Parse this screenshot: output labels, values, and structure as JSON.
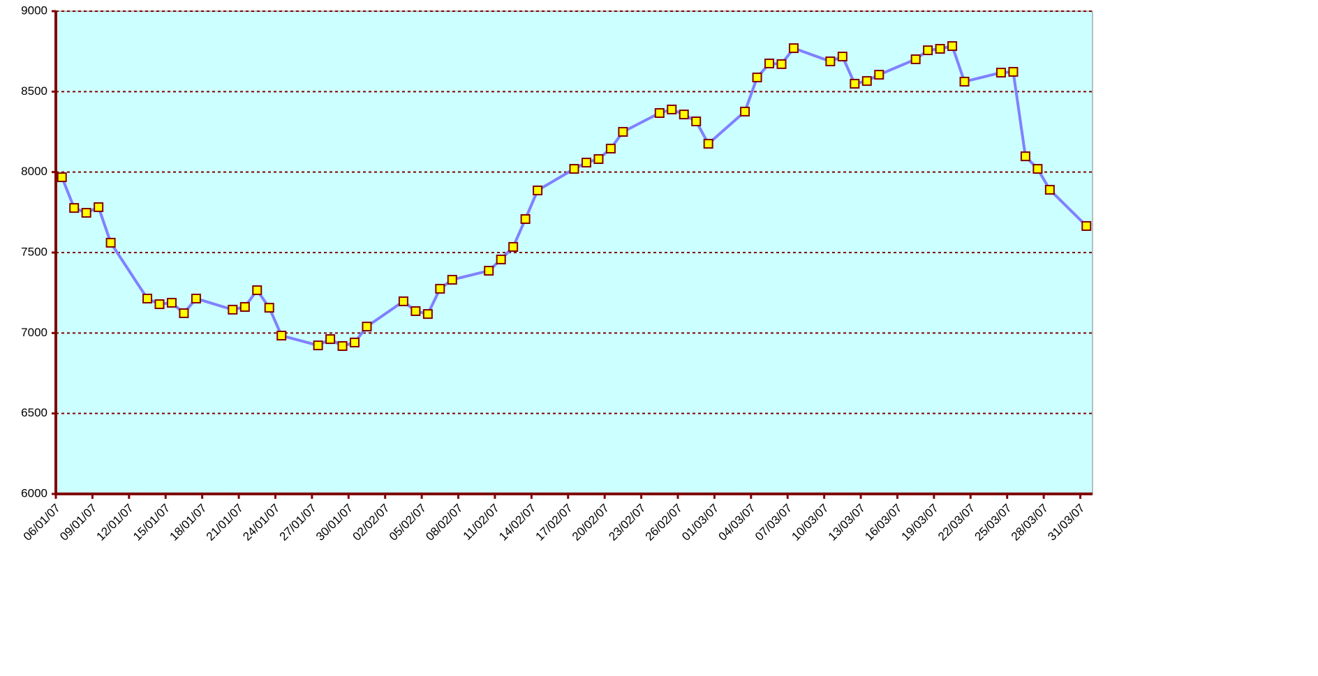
{
  "chart_data": {
    "type": "line",
    "x": [
      "06/01/07",
      "07/01/07",
      "08/01/07",
      "09/01/07",
      "10/01/07",
      "13/01/07",
      "14/01/07",
      "15/01/07",
      "16/01/07",
      "17/01/07",
      "20/01/07",
      "21/01/07",
      "22/01/07",
      "23/01/07",
      "24/01/07",
      "27/01/07",
      "28/01/07",
      "29/01/07",
      "30/01/07",
      "31/01/07",
      "03/02/07",
      "04/02/07",
      "05/02/07",
      "06/02/07",
      "07/02/07",
      "10/02/07",
      "11/02/07",
      "12/02/07",
      "13/02/07",
      "14/02/07",
      "17/02/07",
      "18/02/07",
      "19/02/07",
      "20/02/07",
      "21/02/07",
      "24/02/07",
      "25/02/07",
      "26/02/07",
      "27/02/07",
      "28/02/07",
      "03/03/07",
      "04/03/07",
      "05/03/07",
      "06/03/07",
      "07/03/07",
      "10/03/07",
      "11/03/07",
      "12/03/07",
      "13/03/07",
      "14/03/07",
      "17/03/07",
      "18/03/07",
      "19/03/07",
      "20/03/07",
      "21/03/07",
      "24/03/07",
      "25/03/07",
      "26/03/07",
      "27/03/07",
      "28/03/07",
      "31/03/07"
    ],
    "series": [
      {
        "color": "#8080ff",
        "marker_color": "#ffff00",
        "marker_edge": "#800000",
        "values": [
          7968,
          7777,
          7747,
          7782,
          7561,
          7214,
          7179,
          7188,
          7123,
          7214,
          7145,
          7162,
          7266,
          7157,
          6984,
          6923,
          6962,
          6919,
          6941,
          7040,
          7197,
          7136,
          7118,
          7275,
          7331,
          7387,
          7457,
          7535,
          7708,
          7886,
          8020,
          8059,
          8081,
          8146,
          8250,
          8367,
          8389,
          8358,
          8315,
          8176,
          8376,
          8588,
          8675,
          8671,
          8770,
          8688,
          8718,
          8549,
          8566,
          8605,
          8701,
          8757,
          8766,
          8783,
          8562,
          8618,
          8623,
          8098,
          8020,
          7890,
          7665
        ]
      }
    ],
    "xlim": [
      "06/01/07",
      "01/04/07"
    ],
    "xticks": [
      "06/01/07",
      "09/01/07",
      "12/01/07",
      "15/01/07",
      "18/01/07",
      "21/01/07",
      "24/01/07",
      "27/01/07",
      "30/01/07",
      "02/02/07",
      "05/02/07",
      "08/02/07",
      "11/02/07",
      "14/02/07",
      "17/02/07",
      "20/02/07",
      "23/02/07",
      "26/02/07",
      "01/03/07",
      "04/03/07",
      "07/03/07",
      "10/03/07",
      "13/03/07",
      "16/03/07",
      "19/03/07",
      "22/03/07",
      "25/03/07",
      "28/03/07",
      "31/03/07"
    ],
    "ylim": [
      6000,
      9000
    ],
    "yticks": [
      6000,
      6500,
      7000,
      7500,
      8000,
      8500,
      9000
    ],
    "grid": true,
    "plot_background": "#ccffff",
    "axis_color": "#800000"
  }
}
